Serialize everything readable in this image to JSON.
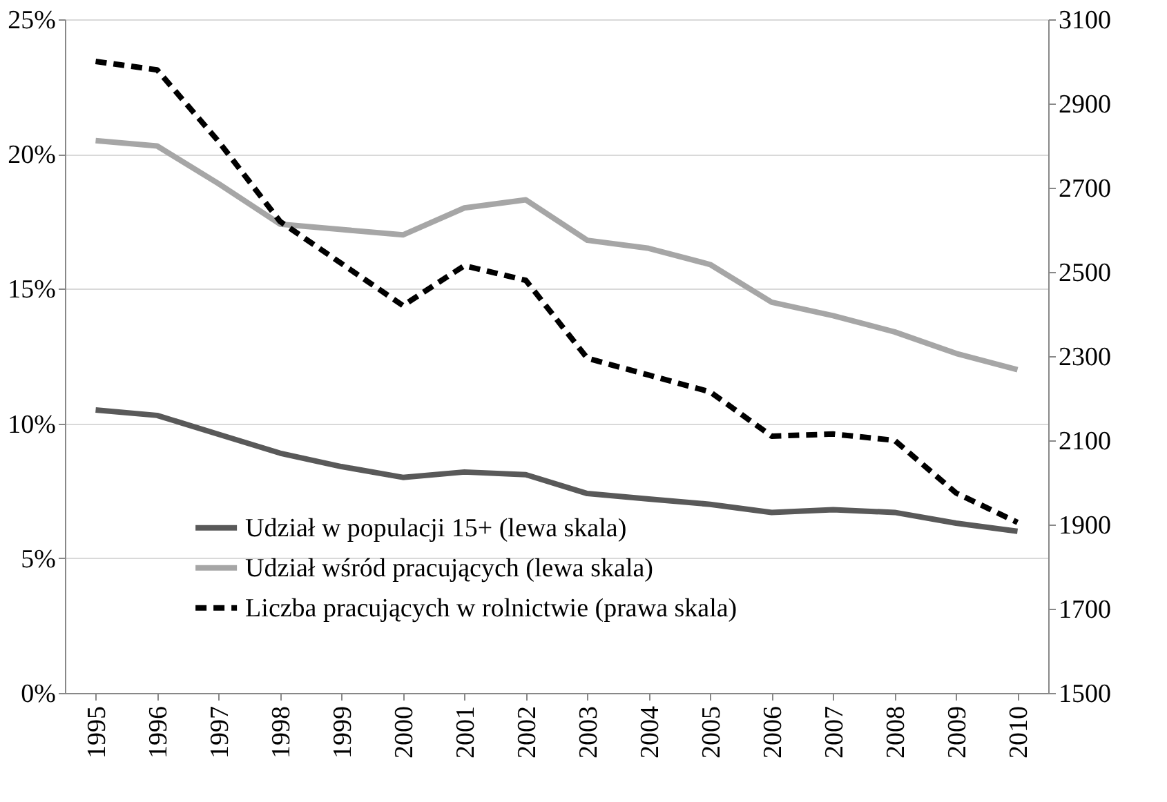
{
  "chart_data": {
    "type": "line",
    "categories": [
      "1995",
      "1996",
      "1997",
      "1998",
      "1999",
      "2000",
      "2001",
      "2002",
      "2003",
      "2004",
      "2005",
      "2006",
      "2007",
      "2008",
      "2009",
      "2010"
    ],
    "series": [
      {
        "name": "Udział w populacji 15+ (lewa skala)",
        "color": "#595959",
        "line_style": "solid",
        "values": [
          10.5,
          10.3,
          9.6,
          8.9,
          8.4,
          8.0,
          8.2,
          8.1,
          7.4,
          7.2,
          7.0,
          6.7,
          6.8,
          6.7,
          6.3,
          6.0
        ]
      },
      {
        "name": "Udział wśród pracujących (lewa skala)",
        "color": "#a6a6a6",
        "line_style": "solid",
        "values": [
          20.5,
          20.3,
          18.9,
          17.4,
          17.2,
          17.0,
          18.0,
          18.3,
          16.8,
          16.5,
          15.9,
          14.5,
          14.0,
          13.4,
          12.6,
          12.0
        ]
      },
      {
        "name": "Liczba pracujących w rolnictwie (prawa skala)",
        "color": "#000000",
        "line_style": "dashed",
        "axis": "y2",
        "values": [
          3000,
          2980,
          2810,
          2620,
          2520,
          2420,
          2515,
          2480,
          2295,
          2255,
          2215,
          2110,
          2115,
          2100,
          1975,
          1905
        ]
      }
    ],
    "ylim": [
      0,
      25
    ],
    "yticks": [
      {
        "value": 0,
        "label": "0%"
      },
      {
        "value": 5,
        "label": "5%"
      },
      {
        "value": 10,
        "label": "10%"
      },
      {
        "value": 15,
        "label": "15%"
      },
      {
        "value": 20,
        "label": "20%"
      },
      {
        "value": 25,
        "label": "25%"
      }
    ],
    "y2lim": [
      1500,
      3100
    ],
    "y2ticks": [
      1500,
      1700,
      1900,
      2100,
      2300,
      2500,
      2700,
      2900,
      3100
    ],
    "grid": "y",
    "legend": "bottom",
    "marker": "none"
  }
}
